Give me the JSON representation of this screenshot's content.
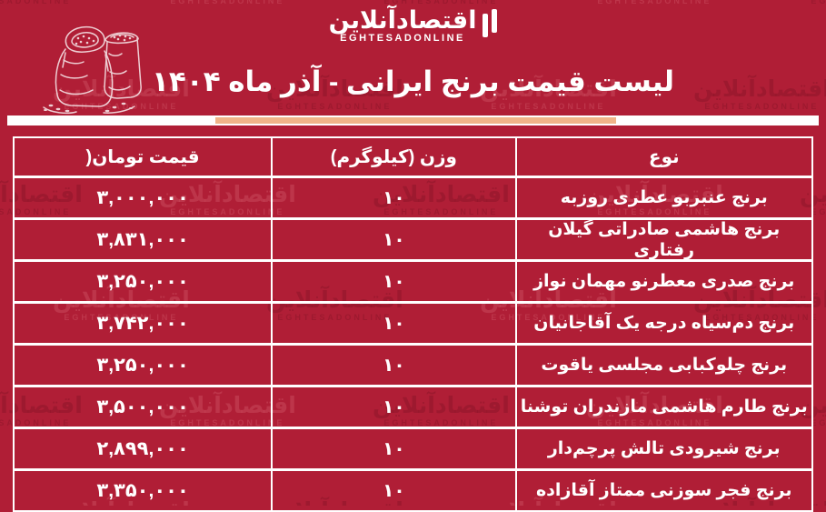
{
  "page": {
    "background_color": "#b01e36",
    "accent_color": "#f0b489"
  },
  "brand": {
    "name_fa": "اقتصادآنلاین",
    "name_en": "EGHTESADONLINE"
  },
  "header": {
    "title": "لیست قیمت برنج ایرانی - آذر ماه ۱۴۰۴"
  },
  "watermark": {
    "text_fa": "اقتصادآنلاین",
    "text_en": "EGHTESADONLINE"
  },
  "table": {
    "columns": {
      "type": "نوع",
      "weight": "وزن (کیلوگرم)",
      "price": "قیمت تومان("
    },
    "rows": [
      {
        "type": "برنج عنبربو عطری روزبه",
        "weight": "۱۰",
        "price": "۳,۰۰۰,۰۰۰"
      },
      {
        "type": "برنج هاشمی صادراتی گیلان رفتاری",
        "weight": "۱۰",
        "price": "۳,۸۳۱,۰۰۰"
      },
      {
        "type": "برنج صدری معطرنو مهمان نواز",
        "weight": "۱۰",
        "price": "۳,۲۵۰,۰۰۰"
      },
      {
        "type": "برنج دم‌سیاه درجه یک آقاجانیان",
        "weight": "۱۰",
        "price": "۳,۷۴۲,۰۰۰"
      },
      {
        "type": "برنج چلوکبابی مجلسی یاقوت",
        "weight": "۱۰",
        "price": "۳,۲۵۰,۰۰۰"
      },
      {
        "type": "برنج طارم هاشمی مازندران توشنا",
        "weight": "۱۰",
        "price": "۳,۵۰۰,۰۰۰"
      },
      {
        "type": "برنج شیرودی تالش پرچم‌دار",
        "weight": "۱۰",
        "price": "۲,۸۹۹,۰۰۰"
      },
      {
        "type": "برنج فجر سوزنی ممتاز آقازاده",
        "weight": "۱۰",
        "price": "۳,۳۵۰,۰۰۰"
      }
    ]
  }
}
